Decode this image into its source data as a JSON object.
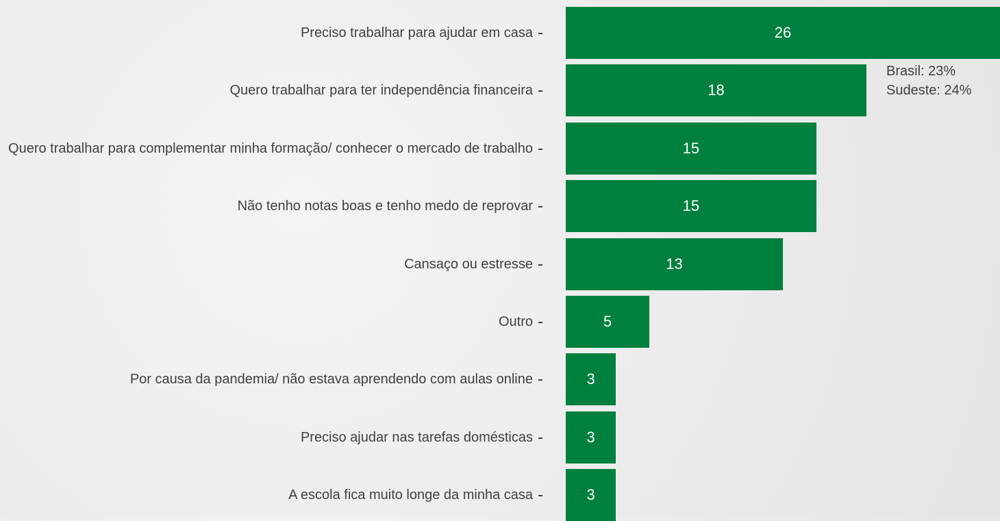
{
  "chart_data": {
    "type": "barh",
    "categories": [
      "Preciso trabalhar para ajudar em casa",
      "Quero trabalhar para ter independência financeira",
      "Quero trabalhar para complementar minha formação/ conhecer o mercado de trabalho",
      "Não tenho notas boas e tenho medo de reprovar",
      "Cansaço ou estresse",
      "Outro",
      "Por causa da pandemia/ não estava aprendendo com aulas online",
      "Preciso ajudar nas tarefas domésticas",
      "A escola fica muito longe da minha casa"
    ],
    "values": [
      26,
      18,
      15,
      15,
      13,
      5,
      3,
      3,
      3
    ],
    "color": "#00803e",
    "xlim": [
      0,
      26
    ],
    "annotations": [
      "Brasil: 23%",
      "Sudeste: 24%"
    ]
  }
}
